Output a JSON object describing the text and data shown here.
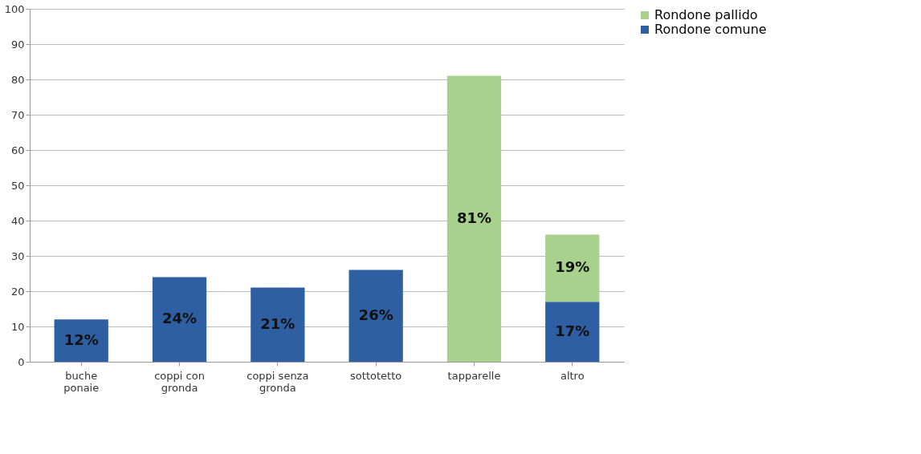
{
  "chart_data": {
    "type": "bar",
    "stacked": true,
    "categories": [
      "buche\nponaie",
      "coppi con\ngronda",
      "coppi senza\ngronda",
      "sottotetto",
      "tapparelle",
      "altro"
    ],
    "series": [
      {
        "name": "Rondone comune",
        "color": "#2e5fa3",
        "values": [
          12,
          24,
          21,
          26,
          null,
          17
        ],
        "value_labels": [
          "12%",
          "24%",
          "21%",
          "26%",
          null,
          "17%"
        ]
      },
      {
        "name": "Rondone pallido",
        "color": "#a9d18e",
        "values": [
          null,
          null,
          null,
          null,
          81,
          19
        ],
        "value_labels": [
          null,
          null,
          null,
          null,
          "81%",
          "19%"
        ]
      }
    ],
    "ylim": [
      0,
      100
    ],
    "yticks": [
      0,
      10,
      20,
      30,
      40,
      50,
      60,
      70,
      80,
      90,
      100
    ],
    "grid": "y",
    "legend": "right"
  }
}
